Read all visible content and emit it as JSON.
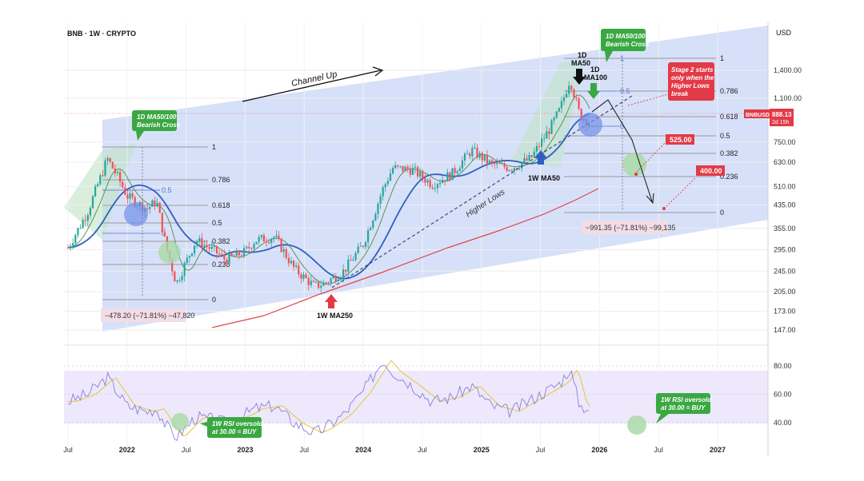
{
  "header": {
    "symbol_line": "BNB · 1W · CRYPTO",
    "currency": "USD"
  },
  "price_tag": {
    "ticker": "BNBUSD",
    "price": "888.13",
    "countdown": "2d 15h"
  },
  "colors": {
    "channel_fill": "#c9d6f7",
    "ma50": "#2f5fc0",
    "ma250": "#e0474c",
    "green_note": "#3aa842",
    "red_note": "#e23a46",
    "candle_up": "#26a69a",
    "candle_down": "#ef5350",
    "rsi_line": "#8b7fd6",
    "rsi_ma": "#e8c84a",
    "rsi_band": "#ede8fb"
  },
  "annotations": {
    "channel_up": "Channel Up",
    "higher_lows": "Higher Lows",
    "cross_2021_line1": "1D MA50/100",
    "cross_2021_line2": "Bearish Cross",
    "cross_2025_line1": "1D MA50/100",
    "cross_2025_line2": "Bearish Cross",
    "ma50_1d_a": "1D",
    "ma50_1d_b": "MA50",
    "ma100_1d_a": "1D",
    "ma100_1d_b": "MA100",
    "stage2_line1": "Stage 2 starts",
    "stage2_line2": "only when the",
    "stage2_line3": "Higher Lows",
    "stage2_line4": "break",
    "target_525": "525.00",
    "target_400": "400.00",
    "ma250_1w": "1W MA250",
    "ma50_1w": "1W MA50",
    "measure_2022": "−478.20 (−71.81%) −47,820",
    "measure_2025": "−991.35 (−71.81%) −99,135",
    "rsi_note_2022_line1": "1W RSI oversold",
    "rsi_note_2022_line2": "at 30.00 = BUY",
    "rsi_note_2026_line1": "1W RSI oversold",
    "rsi_note_2026_line2": "at 30.00 = BUY"
  },
  "fib_2021": {
    "levels": [
      "1",
      "0.786",
      "0.618",
      "0.5",
      "0.382",
      "0.236",
      "0"
    ],
    "blue_levels": [
      "0.5",
      "0"
    ]
  },
  "fib_2025": {
    "levels": [
      "1",
      "0.786",
      "0.618",
      "0.5",
      "0.382",
      "0.236",
      "0"
    ],
    "blue_levels": [
      "1",
      "0.5",
      "0"
    ]
  },
  "chart_data": {
    "type": "line",
    "title": "BNB · 1W · CRYPTO",
    "ylabel": "USD",
    "y_scale": "log",
    "ylim": [
      140,
      1700
    ],
    "y_ticks": [
      1400,
      1100,
      750,
      630,
      510,
      435,
      355,
      295,
      245,
      205,
      173,
      147
    ],
    "y_tick_labels": [
      "1,400.00",
      "1,100.00",
      "750.00",
      "630.00",
      "510.00",
      "435.00",
      "355.00",
      "295.00",
      "245.00",
      "205.00",
      "173.00",
      "147.00"
    ],
    "x_ticks": [
      "Jul",
      "2022",
      "Jul",
      "2023",
      "Jul",
      "2024",
      "Jul",
      "2025",
      "Jul",
      "2026",
      "Jul",
      "2027"
    ],
    "grid": true,
    "series": [
      {
        "name": "BNBUSD",
        "x": [
          "2021-07",
          "2021-09",
          "2021-11",
          "2021-12",
          "2022-01",
          "2022-03",
          "2022-04",
          "2022-05",
          "2022-06",
          "2022-08",
          "2022-10",
          "2022-11",
          "2023-01",
          "2023-02",
          "2023-04",
          "2023-06",
          "2023-08",
          "2023-09",
          "2023-11",
          "2024-01",
          "2024-03",
          "2024-04",
          "2024-06",
          "2024-08",
          "2024-10",
          "2024-12",
          "2025-02",
          "2025-04",
          "2025-06",
          "2025-08",
          "2025-09",
          "2025-10",
          "2025-11",
          "2025-12"
        ],
        "values": [
          300,
          410,
          650,
          560,
          470,
          420,
          450,
          300,
          220,
          320,
          290,
          270,
          290,
          320,
          330,
          250,
          215,
          220,
          245,
          310,
          500,
          600,
          590,
          520,
          570,
          700,
          620,
          600,
          650,
          850,
          1000,
          1300,
          950,
          888
        ]
      }
    ],
    "rsi": {
      "ylim": [
        25,
        90
      ],
      "y_ticks": [
        80,
        60,
        40
      ],
      "y_tick_labels": [
        "80.00",
        "60.00",
        "40.00"
      ],
      "band": [
        30,
        70
      ],
      "values": [
        55,
        60,
        72,
        62,
        52,
        48,
        50,
        38,
        30,
        44,
        42,
        40,
        46,
        50,
        52,
        40,
        33,
        36,
        46,
        62,
        84,
        76,
        66,
        55,
        58,
        66,
        52,
        48,
        56,
        64,
        68,
        78,
        52,
        50
      ]
    },
    "last_price": 888.13
  }
}
